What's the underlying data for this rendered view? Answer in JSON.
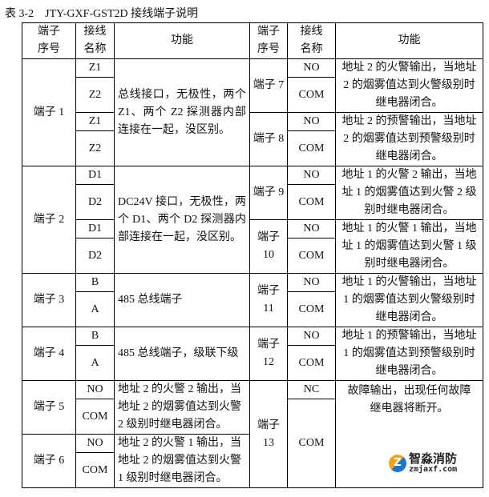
{
  "caption": "表 3-2　JTY-GXF-GST2D 接线端子说明",
  "header": {
    "seq": [
      "端子",
      "序号"
    ],
    "name": [
      "接线",
      "名称"
    ],
    "func": "功能"
  },
  "left": {
    "t1": {
      "label": "端子 1",
      "wires": [
        "Z1",
        "Z2",
        "Z1",
        "Z2"
      ],
      "func": "总线接口，无极性，两个 Z1、两个 Z2 探测器内部连接在一起，没区别。"
    },
    "t2": {
      "label": "端子 2",
      "wires": [
        "D1",
        "D2",
        "D1",
        "D2"
      ],
      "func": "DC24V 接口，无极性，两个 D1、两个 D2 探测器内部连接在一起，没区别。"
    },
    "t3": {
      "label": "端子 3",
      "wires": [
        "B",
        "A"
      ],
      "func": "485 总线端子"
    },
    "t4": {
      "label": "端子 4",
      "wires": [
        "B",
        "A"
      ],
      "func": "485 总线端子，级联下级"
    },
    "t5": {
      "label": "端子 5",
      "wires": [
        "NO",
        "COM"
      ],
      "func": "地址 2 的火警 2 输出，当地址 2 的烟雾值达到火警 2 级别时继电器闭合。"
    },
    "t6": {
      "label": "端子 6",
      "wires": [
        "NO",
        "COM"
      ],
      "func": "地址 2 的火警 1 输出，当地址 2 的烟雾值达到火警 1 级别时继电器闭合。"
    }
  },
  "right": {
    "t7": {
      "label": "端子 7",
      "wires": [
        "NO",
        "COM"
      ],
      "func": "地址 2 的火警输出，当地址 2 的烟雾值达到火警级别时继电器闭合。"
    },
    "t8": {
      "label": "端子 8",
      "wires": [
        "NO",
        "COM"
      ],
      "func": "地址 2 的预警输出，当地址 2 的烟雾值达到预警级别时继电器闭合。"
    },
    "t9": {
      "label": "端子 9",
      "wires": [
        "NO",
        "COM"
      ],
      "func": "地址 1 的火警 2 输出，当地址 1 的烟雾值达到火警 2 级别时继电器闭合。"
    },
    "t10": {
      "label": "端子 10",
      "wires": [
        "NO",
        "COM"
      ],
      "func": "地址 1 的火警 1 输出，当地址 1 的烟雾值达到火警 1 级别时继电器闭合。"
    },
    "t11": {
      "label": "端子 11",
      "wires": [
        "NO",
        "COM"
      ],
      "func": "地址 1 的火警输出，当地址 1 的烟雾值达到火警级别时继电器闭合。"
    },
    "t12": {
      "label": "端子 12",
      "wires": [
        "NO",
        "COM"
      ],
      "func": "地址 1 的预警输出，当地址 1 的烟雾值达到预警级别时继电器闭合。"
    },
    "t13": {
      "label": "端子 13",
      "wires": [
        "NC",
        "COM"
      ],
      "func": "故障输出，出现任何故障继电器将断开。"
    }
  },
  "watermark": {
    "name": "智淼消防",
    "url": "zmjaxf.com"
  }
}
